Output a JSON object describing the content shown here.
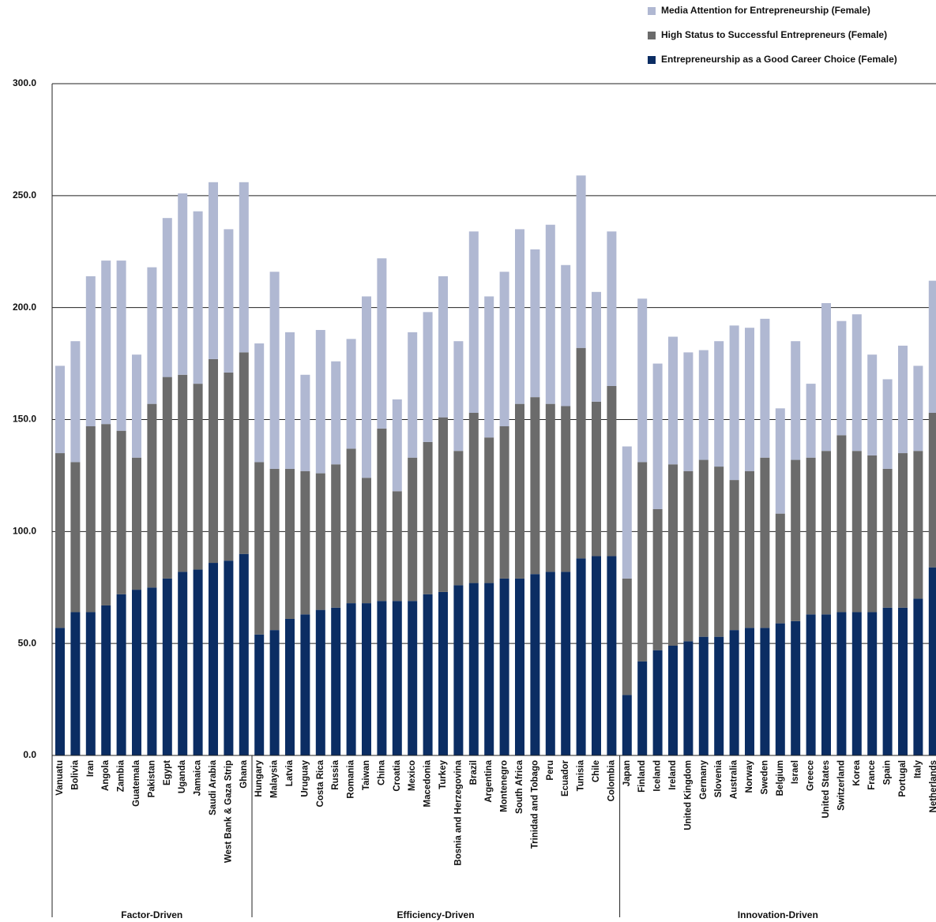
{
  "chart_data": {
    "type": "stacked-bar",
    "groups": [
      {
        "name": "Factor-Driven",
        "categories": [
          "Vanuatu",
          "Bolivia",
          "Iran",
          "Angola",
          "Zambia",
          "Guatemala",
          "Pakistan",
          "Egypt",
          "Uganda",
          "Jamaica",
          "Saudi Arabia",
          "West Bank & Gaza Strip",
          "Ghana"
        ]
      },
      {
        "name": "Efficiency-Driven",
        "categories": [
          "Hungary",
          "Malaysia",
          "Latvia",
          "Uruguay",
          "Costa Rica",
          "Russia",
          "Romania",
          "Taiwan",
          "China",
          "Croatia",
          "Mexico",
          "Macedonia",
          "Turkey",
          "Bosnia and Herzegovina",
          "Brazil",
          "Argentina",
          "Montenegro",
          "South Africa",
          "Trinidad and Tobago",
          "Peru",
          "Ecuador",
          "Tunisia",
          "Chile",
          "Colombia"
        ]
      },
      {
        "name": "Innovation-Driven",
        "categories": [
          "Japan",
          "Finland",
          "Iceland",
          "Ireland",
          "United Kingdom",
          "Germany",
          "Slovenia",
          "Australia",
          "Norway",
          "Sweden",
          "Belgium",
          "Israel",
          "Greece",
          "United States",
          "Switzerland",
          "Korea",
          "France",
          "Spain",
          "Portugal",
          "Italy",
          "Netherlands"
        ]
      }
    ],
    "series": [
      {
        "name": "Entrepreneurship as a Good Career Choice (Female)",
        "color": "#0b2d63",
        "values": [
          57,
          64,
          64,
          67,
          72,
          74,
          75,
          79,
          82,
          83,
          86,
          87,
          90,
          54,
          56,
          61,
          63,
          65,
          66,
          68,
          68,
          69,
          69,
          69,
          72,
          73,
          76,
          77,
          77,
          79,
          79,
          81,
          82,
          82,
          88,
          89,
          89,
          27,
          42,
          47,
          49,
          51,
          53,
          53,
          56,
          57,
          57,
          59,
          60,
          63,
          63,
          64,
          64,
          64,
          66,
          66,
          70,
          84
        ]
      },
      {
        "name": "High Status to Successful Entrepreneurs (Female)",
        "color": "#6b6b6b",
        "values": [
          78,
          67,
          83,
          81,
          73,
          59,
          82,
          90,
          88,
          83,
          91,
          84,
          90,
          77,
          72,
          67,
          64,
          61,
          64,
          69,
          56,
          77,
          49,
          64,
          68,
          78,
          60,
          76,
          65,
          68,
          78,
          79,
          75,
          74,
          94,
          69,
          76,
          52,
          89,
          63,
          81,
          76,
          79,
          76,
          67,
          70,
          76,
          49,
          72,
          70,
          73,
          79,
          72,
          70,
          62,
          69,
          66,
          69
        ]
      },
      {
        "name": "Media Attention for Entrepreneurship (Female)",
        "color": "#b0b8d2",
        "values": [
          39,
          54,
          67,
          73,
          76,
          46,
          61,
          71,
          81,
          77,
          79,
          64,
          76,
          53,
          88,
          61,
          43,
          64,
          46,
          49,
          81,
          76,
          41,
          56,
          58,
          63,
          49,
          81,
          63,
          69,
          78,
          66,
          80,
          63,
          77,
          49,
          69,
          59,
          73,
          65,
          57,
          53,
          49,
          56,
          69,
          64,
          62,
          47,
          53,
          33,
          66,
          51,
          61,
          45,
          40,
          48,
          38,
          59
        ]
      }
    ],
    "ylim": [
      0,
      300
    ],
    "yticks": [
      {
        "value": 0,
        "label": "0.0"
      },
      {
        "value": 50,
        "label": "50.0"
      },
      {
        "value": 100,
        "label": "100.0"
      },
      {
        "value": 150,
        "label": "150.0"
      },
      {
        "value": 200,
        "label": "200.0"
      },
      {
        "value": 250,
        "label": "250.0"
      },
      {
        "value": 300,
        "label": "300.0"
      }
    ],
    "grid": true
  }
}
